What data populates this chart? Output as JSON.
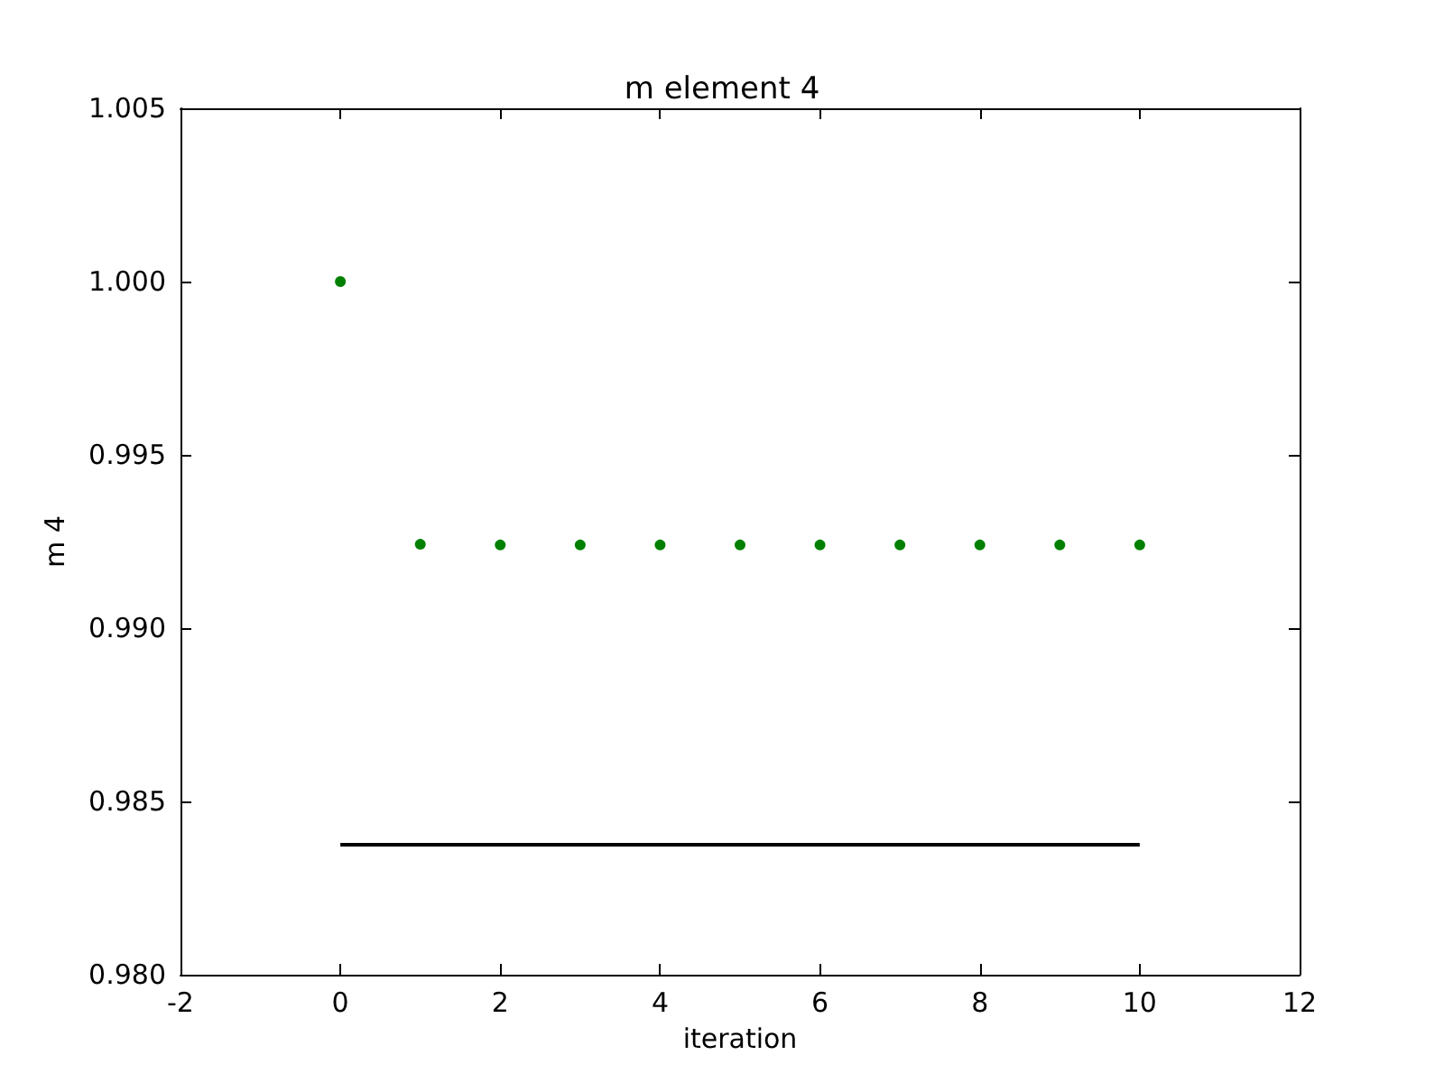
{
  "chart_data": {
    "type": "scatter",
    "title": "m element 4",
    "xlabel": "iteration",
    "ylabel": "m 4",
    "x": [
      0,
      1,
      2,
      3,
      4,
      5,
      6,
      7,
      8,
      9,
      10
    ],
    "series": [
      {
        "color": "#008000",
        "marker": "circle",
        "values": [
          1.0,
          0.99242,
          0.9924,
          0.9924,
          0.9924,
          0.9924,
          0.9924,
          0.9924,
          0.9924,
          0.9924,
          0.9924
        ]
      },
      {
        "type": "line",
        "color": "#000000",
        "marker": "none",
        "line_style": "solid",
        "x": [
          0,
          10
        ],
        "values": [
          0.98375,
          0.98375
        ]
      }
    ],
    "xlim": [
      -2,
      12
    ],
    "xticks": [
      -2,
      0,
      2,
      4,
      6,
      8,
      10,
      12
    ],
    "ylim": [
      0.98,
      1.005
    ],
    "yticks": [
      {
        "value": 0.98,
        "label": "0.980"
      },
      {
        "value": 0.985,
        "label": "0.985"
      },
      {
        "value": 0.99,
        "label": "0.990"
      },
      {
        "value": 0.995,
        "label": "0.995"
      },
      {
        "value": 1.0,
        "label": "1.000"
      },
      {
        "value": 1.005,
        "label": "1.005"
      }
    ],
    "grid": false
  }
}
